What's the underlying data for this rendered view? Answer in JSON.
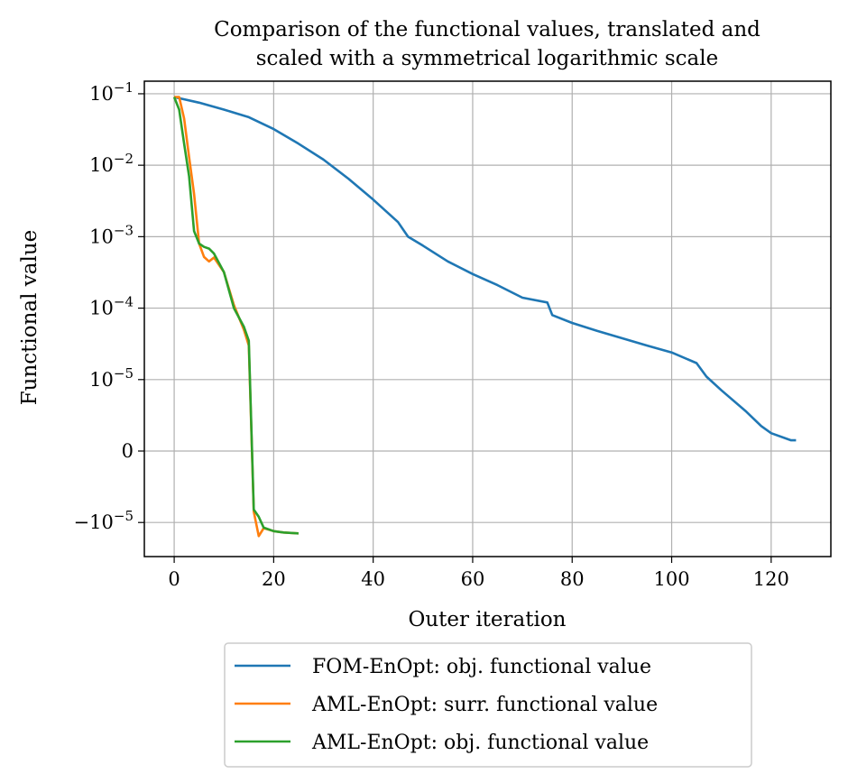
{
  "chart_data": {
    "type": "line",
    "title_line1": "Comparison of the functional values, translated and",
    "title_line2": "scaled with a symmetrical logarithmic scale",
    "xlabel": "Outer iteration",
    "ylabel": "Functional value",
    "yscale": "symlog",
    "linthresh": 1e-05,
    "grid": true,
    "legend_position": "below the axes",
    "xlim": [
      -6,
      132
    ],
    "ylim": [
      -3e-05,
      0.15
    ],
    "xticks": [
      0,
      20,
      40,
      60,
      80,
      100,
      120
    ],
    "xtick_labels": [
      "0",
      "20",
      "40",
      "60",
      "80",
      "100",
      "120"
    ],
    "yticks": [
      {
        "value": 0.1,
        "base": "10",
        "exp": "−1"
      },
      {
        "value": 0.01,
        "base": "10",
        "exp": "−2"
      },
      {
        "value": 0.001,
        "base": "10",
        "exp": "−3"
      },
      {
        "value": 0.0001,
        "base": "10",
        "exp": "−4"
      },
      {
        "value": 1e-05,
        "base": "10",
        "exp": "−5"
      },
      {
        "value": 0,
        "base": "0",
        "exp": ""
      },
      {
        "value": -1e-05,
        "base": "−10",
        "exp": "−5"
      }
    ],
    "series": [
      {
        "name": "FOM-EnOpt: obj. functional value",
        "color": "#1f77b4",
        "x": [
          0,
          5,
          10,
          15,
          20,
          25,
          30,
          35,
          40,
          45,
          47,
          50,
          55,
          60,
          65,
          70,
          75,
          76,
          80,
          85,
          90,
          95,
          100,
          105,
          107,
          110,
          115,
          118,
          120,
          124,
          125
        ],
        "y": [
          0.09,
          0.075,
          0.06,
          0.047,
          0.032,
          0.02,
          0.012,
          0.0065,
          0.0033,
          0.0016,
          0.001,
          0.00075,
          0.00045,
          0.0003,
          0.00021,
          0.00014,
          0.00012,
          8e-05,
          6.2e-05,
          4.8e-05,
          3.8e-05,
          3e-05,
          2.4e-05,
          1.7e-05,
          1.1e-05,
          8.5e-06,
          5.5e-06,
          3.5e-06,
          2.5e-06,
          1.5e-06,
          1.5e-06
        ]
      },
      {
        "name": "AML-EnOpt: surr. functional value",
        "color": "#ff7f0e",
        "x": [
          0,
          1,
          2,
          3,
          4,
          5,
          6,
          7,
          8,
          10,
          12,
          14,
          15,
          16,
          17,
          18,
          20,
          22,
          25
        ],
        "y": [
          0.09,
          0.09,
          0.045,
          0.013,
          0.004,
          0.0008,
          0.00052,
          0.00045,
          0.00051,
          0.00032,
          0.00011,
          5e-05,
          3e-05,
          -8.5e-06,
          -1.55e-05,
          -1.2e-05,
          -1.32e-05,
          -1.38e-05,
          -1.42e-05
        ]
      },
      {
        "name": "AML-EnOpt: obj. functional value",
        "color": "#2ca02c",
        "x": [
          0,
          1,
          2,
          3,
          4,
          5,
          6,
          7,
          8,
          10,
          12,
          14,
          15,
          16,
          17,
          18,
          20,
          22,
          25
        ],
        "y": [
          0.09,
          0.06,
          0.02,
          0.007,
          0.0012,
          0.0008,
          0.00072,
          0.00068,
          0.00058,
          0.00032,
          0.0001,
          5.5e-05,
          3.5e-05,
          -8.2e-06,
          -9.2e-06,
          -1.18e-05,
          -1.32e-05,
          -1.38e-05,
          -1.42e-05
        ]
      }
    ]
  }
}
